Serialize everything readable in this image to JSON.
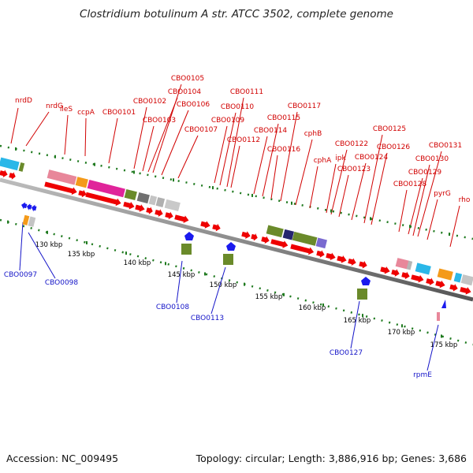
{
  "title": "Clostridium botulinum A str. ATCC 3502, complete genome",
  "footer": {
    "accession": "Accession: NC_009495",
    "summary": "Topology: circular; Length: 3,886,916 bp; Genes: 3,686"
  },
  "colors": {
    "forward_gene": "#ee0000",
    "reverse_gene": "#1a1aee",
    "forward_label": "#d10000",
    "reverse_label": "#1414c8",
    "backbone": "#8c8c8c",
    "tick": "#1f7a1f",
    "feature_teal": "#2ab7e8",
    "feature_pink": "#e8879a",
    "feature_magenta": "#e0249a",
    "feature_olive": "#6a8a2a",
    "feature_orange": "#f49a1a",
    "feature_grey": "#9a9a9a",
    "feature_navy": "#25256e",
    "feature_violet": "#7a6ad0"
  },
  "kbp_labels": [
    "130 kbp",
    "135 kbp",
    "140 kbp",
    "145 kbp",
    "150 kbp",
    "155 kbp",
    "160 kbp",
    "165 kbp",
    "170 kbp",
    "175 kbp"
  ],
  "forward_genes": [
    "nrdD",
    "nrdG",
    "ileS",
    "ccpA",
    "CBO0101",
    "CBO0102",
    "CBO0103",
    "CBO0104",
    "CBO0105",
    "CBO0106",
    "CBO0107",
    "CBO0109",
    "CBO0110",
    "CBO0111",
    "CBO0112",
    "CBO0114",
    "CBO0115",
    "CBO0116",
    "CBO0117",
    "cphB",
    "cphA",
    "ipk",
    "CBO0122",
    "CBO0123",
    "CBO0124",
    "CBO0125",
    "CBO0126",
    "CBO0128",
    "CBO0129",
    "CBO0130",
    "CBO0131",
    "pyrG",
    "rho"
  ],
  "reverse_genes": [
    "CBO0097",
    "CBO0098",
    "CBO0108",
    "CBO0113",
    "CBO0127",
    "rpmE"
  ]
}
